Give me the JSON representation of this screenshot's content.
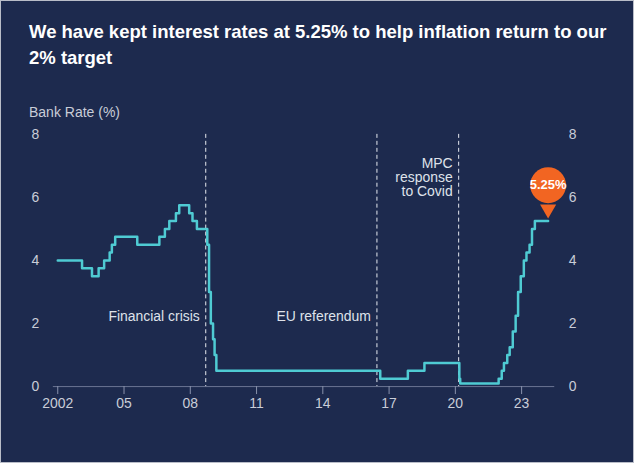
{
  "chart_data": {
    "type": "line",
    "title": "We have kept interest rates at 5.25% to help inflation return to our 2% target",
    "y_label": "Bank Rate (%)",
    "x": [
      2002.0,
      2003.1,
      2003.55,
      2003.85,
      2004.1,
      2004.35,
      2004.45,
      2004.6,
      2005.6,
      2006.6,
      2006.85,
      2007.05,
      2007.35,
      2007.5,
      2007.95,
      2008.1,
      2008.3,
      2008.77,
      2008.85,
      2008.93,
      2009.03,
      2009.1,
      2009.18,
      2016.6,
      2017.85,
      2018.6,
      2020.18,
      2020.22,
      2021.96,
      2022.1,
      2022.2,
      2022.35,
      2022.46,
      2022.6,
      2022.73,
      2022.84,
      2022.96,
      2023.1,
      2023.22,
      2023.36,
      2023.47,
      2023.6,
      2024.2
    ],
    "values": [
      4.0,
      3.75,
      3.5,
      3.75,
      4.0,
      4.25,
      4.5,
      4.75,
      4.5,
      4.75,
      5.0,
      5.25,
      5.5,
      5.75,
      5.5,
      5.25,
      5.0,
      4.5,
      3.0,
      2.0,
      1.5,
      1.0,
      0.5,
      0.25,
      0.5,
      0.75,
      0.25,
      0.1,
      0.25,
      0.5,
      0.75,
      1.0,
      1.25,
      1.75,
      2.25,
      3.0,
      3.5,
      4.0,
      4.25,
      4.5,
      5.0,
      5.25,
      5.25
    ],
    "color": "#4fcbd3",
    "line_style": "step",
    "grid": false,
    "xlim": [
      2001.8,
      2024.5
    ],
    "xticks": [
      2002,
      {
        "value": 2005,
        "label": "05"
      },
      {
        "value": 2008,
        "label": "08"
      },
      {
        "value": 2011,
        "label": "11"
      },
      {
        "value": 2014,
        "label": "14"
      },
      {
        "value": 2017,
        "label": "17"
      },
      {
        "value": 2020,
        "label": "20"
      },
      {
        "value": 2023,
        "label": "23"
      }
    ],
    "ylim": [
      0,
      8
    ],
    "yticks": [
      0,
      2,
      4,
      6,
      8
    ],
    "annotations": [
      {
        "x": 2008.7,
        "label": "Financial crisis"
      },
      {
        "x": 2016.45,
        "label": "EU referendum"
      },
      {
        "x": 2020.15,
        "label": "MPC response to Covid"
      }
    ],
    "callout": {
      "x": 2024.2,
      "value": 5.25,
      "label": "5.25%",
      "color": "#f26522"
    }
  }
}
